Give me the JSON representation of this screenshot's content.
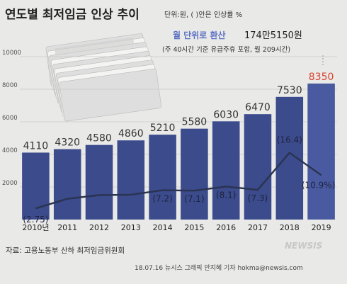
{
  "header": {
    "title": "연도별 최저임금 인상 추이",
    "unit_note": "단위:원, ( )안은 인상률 %",
    "monthly_label": "월 단위로 환산",
    "monthly_value": "174만5150원",
    "monthly_note": "(주 40시간 기준 유급주휴 포함, 월 209시간)"
  },
  "footer": {
    "source": "자료: 고용노동부 산하 최저임금위원회",
    "credit": "18.07.16  뉴시스 그래픽  안지혜 기자  hokma@newsis.com",
    "watermark": "NEWSIS"
  },
  "colors": {
    "bar": "#3b4b8c",
    "bar_highlight": "#4a5aa0",
    "line": "#2a3350",
    "highlight_label": "#d9432f",
    "grid": "#c9c9c9",
    "background": "#e9e9e7",
    "monthly_accent": "#5b70c4"
  },
  "chart_data": {
    "type": "bar",
    "categories": [
      "2010년",
      "2011",
      "2012",
      "2013",
      "2014",
      "2015",
      "2016",
      "2017",
      "2018",
      "2019"
    ],
    "series": [
      {
        "values": [
          4110,
          4320,
          4580,
          4860,
          5210,
          5580,
          6030,
          6470,
          7530,
          8350
        ]
      },
      {
        "type": "line",
        "values": [
          2.75,
          5.1,
          6.0,
          6.1,
          7.2,
          7.1,
          8.1,
          7.3,
          16.4,
          10.9
        ]
      }
    ],
    "value_labels": [
      "4110",
      "4320",
      "4580",
      "4860",
      "5210",
      "5580",
      "6030",
      "6470",
      "7530",
      "8350"
    ],
    "rate_labels": [
      "(2.75)",
      "",
      "",
      "",
      "(7.2)",
      "(7.1)",
      "(8.1)",
      "(7.3)",
      "(16.4)",
      "(10.9%)"
    ],
    "yticks": [
      "2000",
      "4000",
      "6000",
      "8000",
      "10000"
    ],
    "ylim": [
      0,
      10000
    ],
    "rate_ylim": [
      0,
      40
    ],
    "grid": true,
    "legend": "none"
  }
}
